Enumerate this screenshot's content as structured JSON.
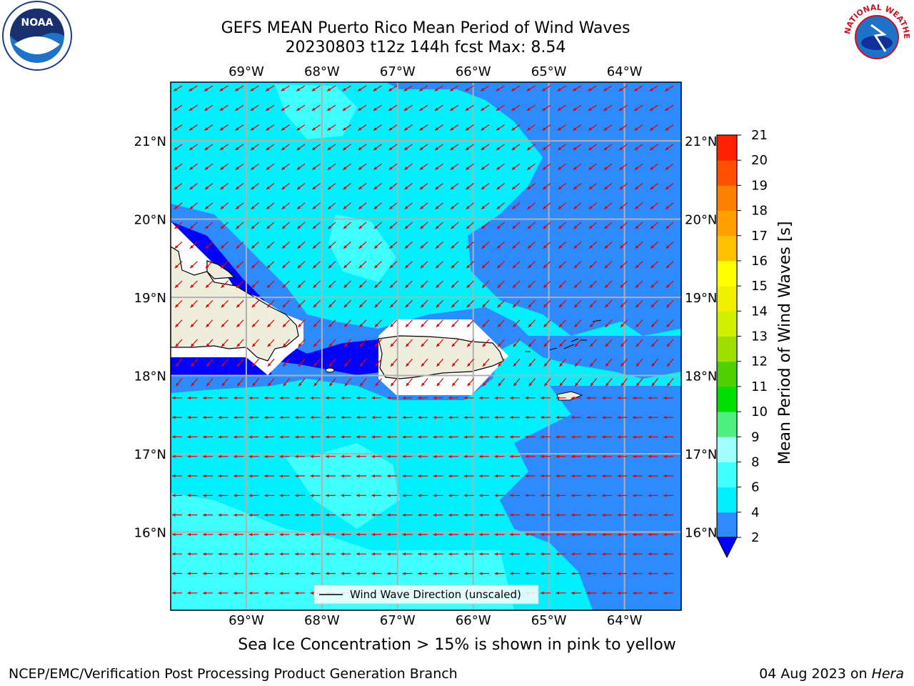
{
  "header": {
    "title_line1": "GEFS MEAN Puerto Rico Mean Period of Wind Waves",
    "title_line2": "20230803 t12z 144h fcst   Max: 8.54"
  },
  "map": {
    "lon_labels": [
      "69°W",
      "68°W",
      "67°W",
      "66°W",
      "65°W",
      "64°W"
    ],
    "lon_values": [
      -69,
      -68,
      -67,
      -66,
      -65,
      -64
    ],
    "lat_labels": [
      "21°N",
      "20°N",
      "19°N",
      "18°N",
      "17°N",
      "16°N"
    ],
    "lat_values": [
      21,
      20,
      19,
      18,
      17,
      16
    ],
    "extent": {
      "lon_min": -70.0,
      "lon_max": -63.25,
      "lat_min": 15.0,
      "lat_max": 21.75
    },
    "legend_label": "Wind Wave Direction (unscaled)",
    "arrow_color": "#e00000"
  },
  "colorbar": {
    "label": "Mean Period of Wind Waves [s]",
    "ticks": [
      "2",
      "4",
      "6",
      "8",
      "9",
      "10",
      "11",
      "12",
      "13",
      "14",
      "15",
      "16",
      "17",
      "18",
      "19",
      "20",
      "21"
    ],
    "colors": [
      "#2e8aff",
      "#00f0ff",
      "#40ffff",
      "#a0ffff",
      "#50f080",
      "#00e000",
      "#50d000",
      "#a0e000",
      "#d0f000",
      "#f0f000",
      "#ffff00",
      "#ffc000",
      "#ffa000",
      "#ff8000",
      "#ff5000",
      "#ff2000"
    ],
    "under_color": "#0000ff"
  },
  "footer": {
    "note": "Sea Ice Concentration > 15% is shown in pink to yellow",
    "branch": "NCEP/EMC/Verification Post Processing Product Generation Branch",
    "date": "04 Aug 2023 on",
    "host": "Hera"
  },
  "logos": {
    "noaa_text": "NOAA",
    "nws_text": "NATIONAL WEATHER SERVICE"
  }
}
